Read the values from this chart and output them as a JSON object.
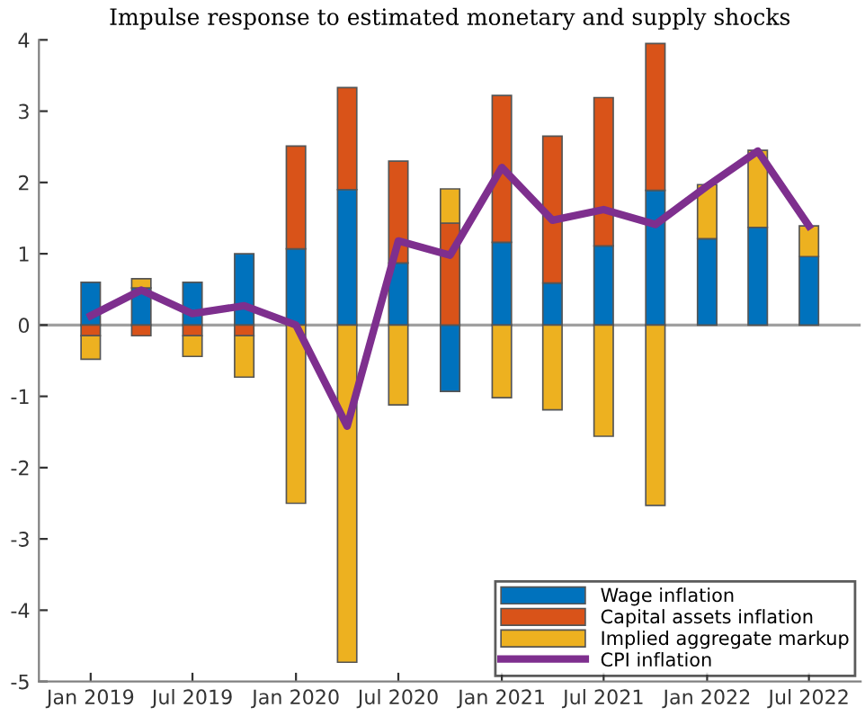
{
  "chart_data": {
    "type": "bar",
    "stacked": true,
    "title": "Impulse response to estimated monetary and supply shocks",
    "x": [
      "2019-01",
      "2019-04",
      "2019-07",
      "2019-10",
      "2020-01",
      "2020-04",
      "2020-07",
      "2020-10",
      "2021-01",
      "2021-04",
      "2021-07",
      "2021-10",
      "2022-01",
      "2022-04",
      "2022-07"
    ],
    "series": [
      {
        "name": "Wage inflation",
        "color": "#0072bd",
        "values": [
          0.6,
          0.52,
          0.6,
          1.0,
          1.07,
          1.9,
          0.87,
          -0.93,
          1.16,
          0.59,
          1.11,
          1.89,
          1.21,
          1.37,
          0.96
        ]
      },
      {
        "name": "Capital assets inflation",
        "color": "#d95319",
        "values": [
          -0.15,
          -0.15,
          -0.15,
          -0.15,
          1.44,
          1.43,
          1.43,
          1.43,
          2.06,
          2.06,
          2.08,
          2.06,
          null,
          null,
          null
        ]
      },
      {
        "name": "Implied aggregate markup",
        "color": "#edb120",
        "values": [
          -0.33,
          0.13,
          -0.29,
          -0.58,
          -2.5,
          -4.73,
          -1.12,
          0.48,
          -1.02,
          -1.19,
          -1.56,
          -2.53,
          0.76,
          1.08,
          0.43
        ]
      },
      {
        "name": "CPI inflation",
        "type": "line",
        "color": "#7e2f8e",
        "values": [
          0.13,
          0.49,
          0.16,
          0.27,
          0.0,
          -1.42,
          1.18,
          0.98,
          2.21,
          1.47,
          1.62,
          1.41,
          1.95,
          2.44,
          1.39
        ]
      }
    ],
    "xlim": [
      "2018-10",
      "2022-10"
    ],
    "xticks": [
      {
        "value": "2019-01",
        "label": "Jan 2019"
      },
      {
        "value": "2019-07",
        "label": "Jul 2019"
      },
      {
        "value": "2020-01",
        "label": "Jan 2020"
      },
      {
        "value": "2020-07",
        "label": "Jul 2020"
      },
      {
        "value": "2021-01",
        "label": "Jan 2021"
      },
      {
        "value": "2021-07",
        "label": "Jul 2021"
      },
      {
        "value": "2022-01",
        "label": "Jan 2022"
      },
      {
        "value": "2022-07",
        "label": "Jul 2022"
      }
    ],
    "ylim": [
      -5,
      4
    ],
    "yticks": [
      -5,
      -4,
      -3,
      -2,
      -1,
      0,
      1,
      2,
      3,
      4
    ],
    "ref_lines": [
      {
        "axis": "y",
        "value": 0,
        "color": "#a0a0a0"
      }
    ],
    "legend": "bottom right",
    "grid": false,
    "marker": "none",
    "line_style": "solid"
  }
}
